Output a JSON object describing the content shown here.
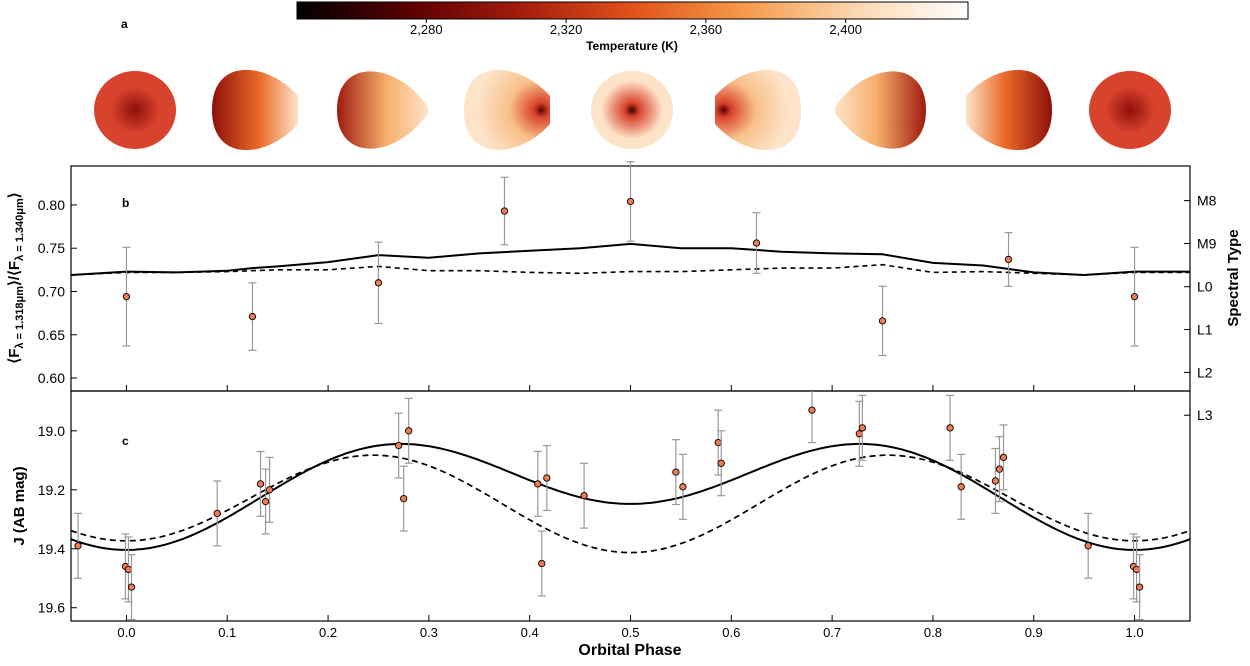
{
  "colorbar": {
    "ticks": [
      "2,280",
      "2,320",
      "2,360",
      "2,400"
    ],
    "tick_values": [
      2280,
      2320,
      2360,
      2400
    ],
    "range": [
      2243,
      2435
    ],
    "label": "Temperature (K)",
    "colors": [
      "#000000",
      "#5a0000",
      "#a51c0c",
      "#e0521a",
      "#f59a4a",
      "#fbd7b0",
      "#ffffff"
    ]
  },
  "panels": {
    "a": {
      "label": "a",
      "maps": [
        {
          "phase": 0.0,
          "shape": "round",
          "hot_side": "center",
          "base": "#d8432d",
          "hot": "#8f0f0a"
        },
        {
          "phase": 0.125,
          "shape": "egg-right",
          "hot_side": "left",
          "base": "#ea6a2a",
          "hot": "#8f0f0a"
        },
        {
          "phase": 0.25,
          "shape": "egg-right-tip",
          "hot_side": "left",
          "base": "#f7b06c",
          "hot": "#9e1a0e"
        },
        {
          "phase": 0.375,
          "shape": "egg-right",
          "hot_side": "right-spot",
          "base": "#f8c08a",
          "hot": "#5a0000"
        },
        {
          "phase": 0.5,
          "shape": "round",
          "hot_side": "center-spot",
          "base": "#fde3c8",
          "hot": "#3a0000"
        },
        {
          "phase": 0.625,
          "shape": "egg-left",
          "hot_side": "left-spot",
          "base": "#f8c08a",
          "hot": "#5a0000"
        },
        {
          "phase": 0.75,
          "shape": "egg-left-tip",
          "hot_side": "right",
          "base": "#f7b06c",
          "hot": "#9e1a0e"
        },
        {
          "phase": 0.875,
          "shape": "egg-left",
          "hot_side": "right",
          "base": "#ea6a2a",
          "hot": "#8f0f0a"
        },
        {
          "phase": 1.0,
          "shape": "round",
          "hot_side": "center",
          "base": "#d8432d",
          "hot": "#8f0f0a"
        }
      ]
    },
    "b": {
      "label": "b",
      "ylabel": "⟨F",
      "ylabel_sub1": "λ = 1.318μm",
      "ylabel_mid": "⟩/⟨F",
      "ylabel_sub2": "λ = 1.340μm",
      "ylabel_end": "⟩",
      "ylim": [
        0.585,
        0.845
      ],
      "yticks": [
        0.6,
        0.65,
        0.7,
        0.75,
        0.8
      ],
      "ytick_labels": [
        "0.60",
        "0.65",
        "0.70",
        "0.75",
        "0.80"
      ],
      "right_label": "Spectral Type",
      "right_ticks": [
        {
          "label": "M8",
          "value": 0.805
        },
        {
          "label": "M9",
          "value": 0.7555
        },
        {
          "label": "L0",
          "value": 0.7055
        },
        {
          "label": "L1",
          "value": 0.656
        },
        {
          "label": "L2",
          "value": 0.6065
        },
        {
          "label": "L3",
          "value": 0.557
        }
      ]
    },
    "c": {
      "label": "c",
      "ylabel": "J (AB mag)",
      "ylim": [
        19.645,
        18.865
      ],
      "yticks": [
        19.0,
        19.2,
        19.4,
        19.6
      ],
      "ytick_labels": [
        "19.0",
        "19.2",
        "19.4",
        "19.6"
      ],
      "xlabel": "Orbital Phase"
    }
  },
  "xaxis": {
    "xlim": [
      -0.055,
      1.055
    ],
    "ticks": [
      0.0,
      0.1,
      0.2,
      0.3,
      0.4,
      0.5,
      0.6,
      0.7,
      0.8,
      0.9,
      1.0
    ],
    "tick_labels": [
      "0.0",
      "0.1",
      "0.2",
      "0.3",
      "0.4",
      "0.5",
      "0.6",
      "0.7",
      "0.8",
      "0.9",
      "1.0"
    ]
  },
  "chart_data": [
    {
      "type": "scatter",
      "panel": "b",
      "ylabel": "⟨F λ = 1.318μm⟩/⟨F λ = 1.340μm⟩",
      "xlabel": "Orbital Phase",
      "points": [
        {
          "x": 0.0,
          "y": 0.694,
          "err": 0.057
        },
        {
          "x": 0.125,
          "y": 0.671,
          "err": 0.039
        },
        {
          "x": 0.25,
          "y": 0.71,
          "err": 0.047
        },
        {
          "x": 0.375,
          "y": 0.793,
          "err": 0.039
        },
        {
          "x": 0.5,
          "y": 0.804,
          "err": 0.046
        },
        {
          "x": 0.625,
          "y": 0.756,
          "err": 0.035
        },
        {
          "x": 0.75,
          "y": 0.666,
          "err": 0.04
        },
        {
          "x": 0.875,
          "y": 0.737,
          "err": 0.031
        },
        {
          "x": 1.0,
          "y": 0.694,
          "err": 0.057
        }
      ],
      "series": [
        {
          "style": "solid",
          "x": [
            -0.055,
            0.0,
            0.05,
            0.1,
            0.125,
            0.15,
            0.2,
            0.25,
            0.3,
            0.35,
            0.4,
            0.45,
            0.5,
            0.55,
            0.6,
            0.65,
            0.7,
            0.75,
            0.8,
            0.85,
            0.9,
            0.95,
            1.0,
            1.055
          ],
          "y": [
            0.719,
            0.723,
            0.722,
            0.724,
            0.727,
            0.729,
            0.734,
            0.742,
            0.739,
            0.744,
            0.747,
            0.75,
            0.755,
            0.75,
            0.75,
            0.746,
            0.744,
            0.743,
            0.733,
            0.73,
            0.722,
            0.719,
            0.723,
            0.723
          ]
        },
        {
          "style": "dashed",
          "x": [
            -0.055,
            0.0,
            0.05,
            0.1,
            0.15,
            0.2,
            0.25,
            0.3,
            0.35,
            0.4,
            0.45,
            0.5,
            0.55,
            0.6,
            0.65,
            0.7,
            0.75,
            0.8,
            0.85,
            0.9,
            0.95,
            1.0,
            1.055
          ],
          "y": [
            0.719,
            0.722,
            0.722,
            0.723,
            0.725,
            0.725,
            0.729,
            0.724,
            0.724,
            0.722,
            0.721,
            0.723,
            0.723,
            0.725,
            0.727,
            0.727,
            0.731,
            0.722,
            0.723,
            0.721,
            0.719,
            0.722,
            0.722
          ]
        }
      ]
    },
    {
      "type": "scatter",
      "panel": "c",
      "ylabel": "J (AB mag)",
      "xlabel": "Orbital Phase",
      "ylim": [
        19.645,
        18.865
      ],
      "points": [
        {
          "x": -0.048,
          "y": 19.39,
          "err": 0.11
        },
        {
          "x": -0.001,
          "y": 19.46,
          "err": 0.11
        },
        {
          "x": 0.002,
          "y": 19.47,
          "err": 0.11
        },
        {
          "x": 0.005,
          "y": 19.53,
          "err": 0.11
        },
        {
          "x": 0.09,
          "y": 19.28,
          "err": 0.11
        },
        {
          "x": 0.133,
          "y": 19.18,
          "err": 0.11
        },
        {
          "x": 0.138,
          "y": 19.24,
          "err": 0.11
        },
        {
          "x": 0.142,
          "y": 19.2,
          "err": 0.11
        },
        {
          "x": 0.27,
          "y": 19.05,
          "err": 0.11
        },
        {
          "x": 0.275,
          "y": 19.23,
          "err": 0.11
        },
        {
          "x": 0.28,
          "y": 19.0,
          "err": 0.11
        },
        {
          "x": 0.408,
          "y": 19.18,
          "err": 0.11
        },
        {
          "x": 0.412,
          "y": 19.45,
          "err": 0.11
        },
        {
          "x": 0.417,
          "y": 19.16,
          "err": 0.11
        },
        {
          "x": 0.454,
          "y": 19.22,
          "err": 0.11
        },
        {
          "x": 0.545,
          "y": 19.14,
          "err": 0.11
        },
        {
          "x": 0.552,
          "y": 19.19,
          "err": 0.11
        },
        {
          "x": 0.587,
          "y": 19.04,
          "err": 0.11
        },
        {
          "x": 0.59,
          "y": 19.11,
          "err": 0.11
        },
        {
          "x": 0.68,
          "y": 18.93,
          "err": 0.11
        },
        {
          "x": 0.727,
          "y": 19.01,
          "err": 0.11
        },
        {
          "x": 0.73,
          "y": 18.99,
          "err": 0.11
        },
        {
          "x": 0.817,
          "y": 18.99,
          "err": 0.11
        },
        {
          "x": 0.828,
          "y": 19.19,
          "err": 0.11
        },
        {
          "x": 0.862,
          "y": 19.17,
          "err": 0.11
        },
        {
          "x": 0.866,
          "y": 19.13,
          "err": 0.11
        },
        {
          "x": 0.87,
          "y": 19.09,
          "err": 0.11
        },
        {
          "x": 0.954,
          "y": 19.39,
          "err": 0.11
        },
        {
          "x": 0.999,
          "y": 19.46,
          "err": 0.11
        },
        {
          "x": 1.002,
          "y": 19.47,
          "err": 0.11
        },
        {
          "x": 1.005,
          "y": 19.53,
          "err": 0.11
        }
      ],
      "models": [
        {
          "style": "solid",
          "mean": 19.2,
          "amp1": 0.0,
          "amp2": 0.22,
          "shift": 0.06
        },
        {
          "style": "dashed",
          "mean": 19.27,
          "amp1": 0.1,
          "amp2": 0.1,
          "shift": 0.0
        }
      ]
    }
  ]
}
